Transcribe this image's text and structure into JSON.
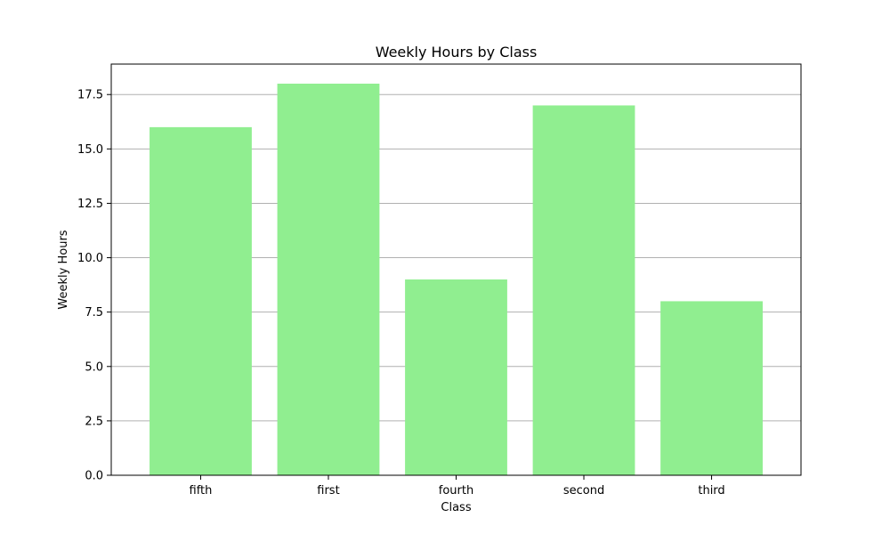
{
  "chart_data": {
    "type": "bar",
    "title": "Weekly Hours by Class",
    "xlabel": "Class",
    "ylabel": "Weekly Hours",
    "categories": [
      "fifth",
      "first",
      "fourth",
      "second",
      "third"
    ],
    "values": [
      16,
      18,
      9,
      17,
      8
    ],
    "ylim": [
      0,
      18.9
    ],
    "yticks": [
      0.0,
      2.5,
      5.0,
      7.5,
      10.0,
      12.5,
      15.0,
      17.5
    ],
    "ytick_labels": [
      "0.0",
      "2.5",
      "5.0",
      "7.5",
      "10.0",
      "12.5",
      "15.0",
      "17.5"
    ],
    "grid": "y-major",
    "bar_color": "#90ee90",
    "grid_color": "#b0b0b0"
  }
}
